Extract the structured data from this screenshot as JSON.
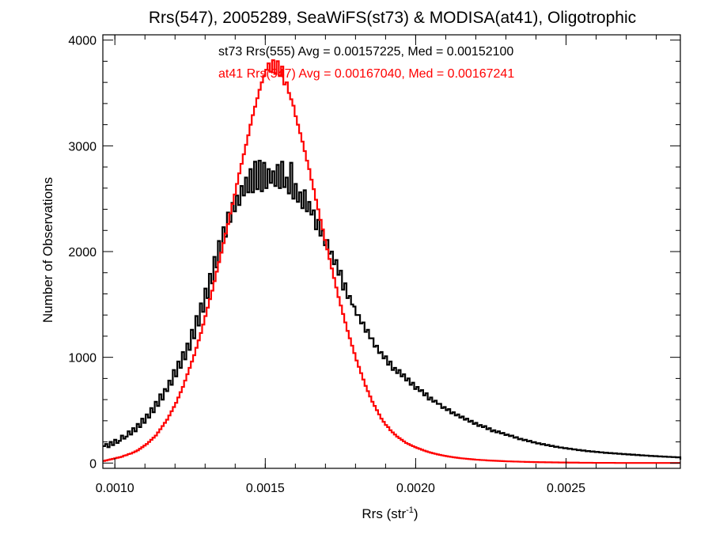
{
  "chart_data": {
    "type": "histogram",
    "title": "Rrs(547), 2005289, SeaWiFS(st73) & MODISA(at41), Oligotrophic",
    "xlabel_main": "Rrs (str",
    "xlabel_sup": "-1",
    "xlabel_close": ")",
    "ylabel": "Number of Observations",
    "xlim": [
      0.00096,
      0.00288
    ],
    "ylim": [
      -50,
      4050
    ],
    "x_ticks": [
      {
        "value": 0.001,
        "label": "0.0010"
      },
      {
        "value": 0.0015,
        "label": "0.0015"
      },
      {
        "value": 0.002,
        "label": "0.0020"
      },
      {
        "value": 0.0025,
        "label": "0.0025"
      }
    ],
    "y_ticks": [
      {
        "value": 0,
        "label": "0"
      },
      {
        "value": 1000,
        "label": "1000"
      },
      {
        "value": 2000,
        "label": "2000"
      },
      {
        "value": 3000,
        "label": "3000"
      },
      {
        "value": 4000,
        "label": "4000"
      }
    ],
    "bin_start": 0.00096,
    "bin_width": 7.5e-06,
    "series": [
      {
        "name": "st73",
        "annotation": "st73 Rrs(555) Avg = 0.00157225, Med = 0.00152100",
        "color": "#000000",
        "counts": [
          160,
          180,
          150,
          200,
          170,
          220,
          190,
          210,
          260,
          230,
          250,
          300,
          270,
          330,
          300,
          370,
          340,
          420,
          380,
          460,
          430,
          520,
          480,
          580,
          540,
          650,
          600,
          700,
          680,
          780,
          740,
          880,
          820,
          960,
          900,
          1050,
          980,
          1130,
          1070,
          1260,
          1180,
          1390,
          1300,
          1510,
          1430,
          1650,
          1560,
          1790,
          1700,
          1950,
          1850,
          2100,
          1990,
          2230,
          2140,
          2370,
          2280,
          2460,
          2380,
          2530,
          2440,
          2620,
          2530,
          2700,
          2560,
          2780,
          2560,
          2850,
          2590,
          2860,
          2570,
          2840,
          2600,
          2780,
          2650,
          2760,
          2620,
          2820,
          2600,
          2850,
          2610,
          2700,
          2550,
          2840,
          2500,
          2640,
          2470,
          2560,
          2410,
          2580,
          2380,
          2470,
          2350,
          2390,
          2210,
          2300,
          2150,
          2200,
          2060,
          2110,
          1980,
          2000,
          1880,
          1920,
          1780,
          1820,
          1640,
          1700,
          1560,
          1580,
          1500,
          1480,
          1400,
          1400,
          1320,
          1330,
          1240,
          1260,
          1180,
          1180,
          1100,
          1110,
          1040,
          1050,
          990,
          1010,
          930,
          960,
          880,
          900,
          850,
          880,
          820,
          840,
          780,
          800,
          740,
          760,
          700,
          720,
          680,
          690,
          640,
          660,
          600,
          620,
          580,
          590,
          560,
          560,
          520,
          530,
          500,
          510,
          470,
          480,
          450,
          460,
          430,
          440,
          410,
          420,
          390,
          400,
          370,
          380,
          350,
          360,
          340,
          350,
          320,
          330,
          300,
          310,
          290,
          300,
          280,
          285,
          265,
          270,
          255,
          260,
          240,
          245,
          225,
          230,
          215,
          220,
          205,
          210,
          195,
          198,
          185,
          188,
          176,
          180,
          168,
          172,
          160,
          163,
          152,
          155,
          146,
          148,
          140,
          142,
          134,
          136,
          128,
          130,
          122,
          124,
          117,
          119,
          112,
          114,
          108,
          110,
          104,
          106,
          100,
          102,
          96,
          98,
          93,
          95,
          90,
          92,
          87,
          89,
          84,
          86,
          81,
          83,
          78,
          80,
          75,
          77,
          72,
          74,
          70,
          71,
          67,
          68,
          65,
          66,
          62,
          63,
          60,
          61,
          58,
          59,
          56,
          57,
          54,
          55,
          52,
          53,
          50,
          51,
          48,
          49,
          46,
          47,
          45,
          45,
          43,
          44,
          42,
          42,
          40,
          41,
          39,
          39,
          38,
          38,
          36,
          37,
          35,
          35,
          34,
          34,
          33
        ]
      },
      {
        "name": "at41",
        "annotation": "at41 Rrs(547) Avg = 0.00167040, Med = 0.00167241",
        "color": "#ff0000",
        "counts": [
          20,
          25,
          30,
          35,
          40,
          45,
          50,
          55,
          60,
          70,
          75,
          85,
          90,
          100,
          110,
          120,
          135,
          150,
          165,
          180,
          200,
          220,
          240,
          260,
          290,
          320,
          350,
          380,
          410,
          450,
          490,
          530,
          570,
          620,
          670,
          720,
          780,
          840,
          900,
          960,
          1020,
          1090,
          1160,
          1230,
          1310,
          1390,
          1470,
          1550,
          1630,
          1720,
          1810,
          1900,
          1990,
          2080,
          2170,
          2260,
          2360,
          2450,
          2540,
          2640,
          2740,
          2830,
          2920,
          3010,
          3100,
          3200,
          3290,
          3370,
          3450,
          3530,
          3600,
          3660,
          3720,
          3780,
          3700,
          3810,
          3680,
          3800,
          3660,
          3750,
          3580,
          3600,
          3500,
          3440,
          3380,
          3280,
          3200,
          3120,
          3040,
          2950,
          2860,
          2780,
          2680,
          2590,
          2490,
          2400,
          2300,
          2210,
          2110,
          2020,
          1930,
          1840,
          1750,
          1660,
          1570,
          1490,
          1410,
          1330,
          1250,
          1180,
          1110,
          1040,
          970,
          910,
          850,
          790,
          730,
          680,
          630,
          580,
          540,
          500,
          460,
          420,
          390,
          360,
          340,
          310,
          290,
          270,
          250,
          235,
          220,
          205,
          190,
          180,
          170,
          160,
          150,
          142,
          134,
          126,
          118,
          111,
          104,
          98,
          92,
          87,
          82,
          77,
          73,
          69,
          65,
          61,
          58,
          55,
          52,
          49,
          46,
          44,
          42,
          40,
          38,
          36,
          34,
          32,
          31,
          29,
          28,
          27,
          25,
          24,
          23,
          22,
          21,
          20,
          19,
          18,
          17,
          16,
          16,
          15,
          14,
          14,
          13,
          12,
          12,
          11,
          11,
          10,
          10,
          9,
          9,
          8,
          8,
          8,
          7,
          7,
          7,
          6,
          6,
          6,
          5,
          5,
          5,
          5,
          4,
          4,
          4,
          4,
          4,
          3,
          3,
          3,
          3,
          3,
          3,
          2,
          2,
          2,
          2,
          2,
          2,
          2,
          2,
          2,
          2,
          1,
          1,
          1,
          1,
          1,
          1,
          1,
          1,
          1,
          1,
          1,
          1,
          1,
          1,
          1,
          1,
          1,
          1,
          1,
          1,
          1,
          1,
          1,
          1,
          1,
          1,
          1,
          1,
          1,
          1,
          1,
          1,
          1,
          1,
          1,
          1,
          1,
          1,
          1,
          1,
          1,
          1,
          1,
          1,
          1,
          1
        ]
      }
    ]
  }
}
